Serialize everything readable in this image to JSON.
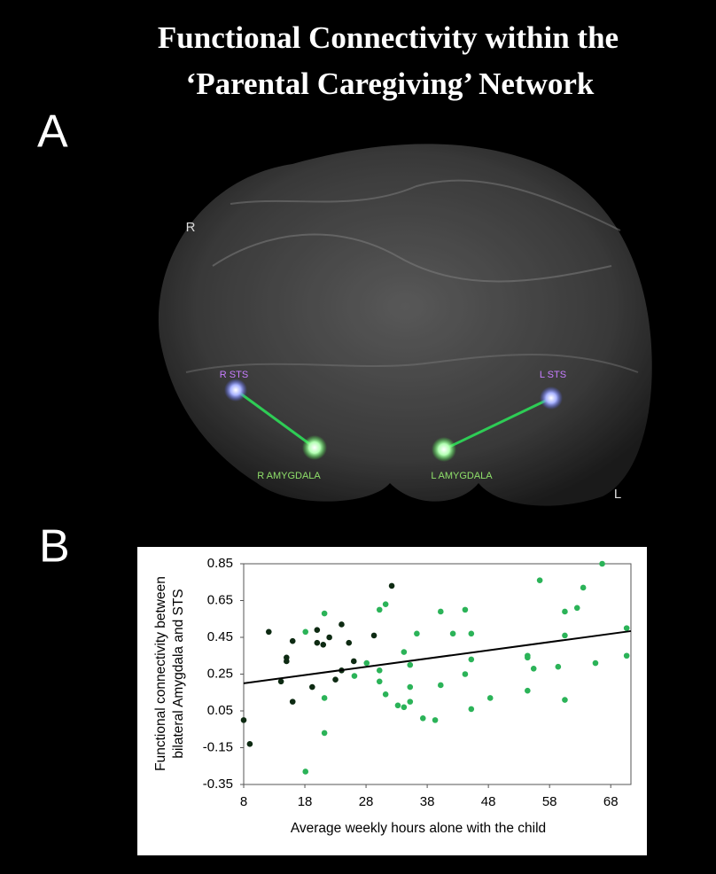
{
  "figure": {
    "title_lines": [
      "Functional Connectivity within the",
      "‘Parental Caregiving’ Network"
    ],
    "panel_a": "A",
    "panel_b": "B",
    "brain_labels": {
      "right": "R",
      "left": "L",
      "r_sts": "R STS",
      "l_sts": "L STS",
      "r_amygdala": "R AMYGDALA",
      "l_amygdala": "L AMYGDALA"
    }
  },
  "chart_data": {
    "type": "scatter",
    "x_label": "Average weekly hours alone with the child",
    "y_label_lines": [
      "Functional connectivity between",
      "bilateral Amygdala and STS"
    ],
    "xlim": [
      8,
      71.3
    ],
    "xticks": [
      8,
      18,
      28,
      38,
      48,
      58,
      68
    ],
    "ylim": [
      -0.35,
      0.85
    ],
    "yticks": [
      -0.35,
      -0.15,
      0.05,
      0.25,
      0.45,
      0.65,
      0.85
    ],
    "series": [
      {
        "color": "#0d2a12",
        "x": [
          8,
          9,
          12.1,
          14.1,
          15,
          15,
          16,
          16,
          19.2,
          20,
          20,
          21,
          22,
          23,
          24,
          24,
          25.2,
          26,
          29.3,
          32.2
        ],
        "values": [
          0.0,
          -0.13,
          0.48,
          0.21,
          0.34,
          0.32,
          0.43,
          0.1,
          0.18,
          0.49,
          0.42,
          0.41,
          0.45,
          0.22,
          0.52,
          0.27,
          0.42,
          0.32,
          0.46,
          0.73
        ]
      },
      {
        "color": "#2bb358",
        "x": [
          18.1,
          18.1,
          21.2,
          21.2,
          21.2,
          26.1,
          28.1,
          30.2,
          30.2,
          30.2,
          31.2,
          31.2,
          33.2,
          34.2,
          34.2,
          35.2,
          35.2,
          35.2,
          36.3,
          37.3,
          39.3,
          40.2,
          40.2,
          42.2,
          44.2,
          44.2,
          45.2,
          45.2,
          45.2,
          48.3,
          54.4,
          54.4,
          54.4,
          55.4,
          56.4,
          59.4,
          60.5,
          60.5,
          60.5,
          62.5,
          63.5,
          65.5,
          66.6,
          70.6,
          70.6
        ],
        "values": [
          -0.28,
          0.48,
          0.58,
          0.12,
          -0.07,
          0.24,
          0.31,
          0.6,
          0.27,
          0.21,
          0.63,
          0.14,
          0.08,
          0.37,
          0.07,
          0.3,
          0.18,
          0.1,
          0.47,
          0.01,
          0.0,
          0.59,
          0.19,
          0.47,
          0.6,
          0.25,
          0.47,
          0.33,
          0.06,
          0.12,
          0.35,
          0.34,
          0.16,
          0.28,
          0.76,
          0.29,
          0.59,
          0.46,
          0.11,
          0.61,
          0.72,
          0.31,
          0.85,
          0.5,
          0.35
        ]
      }
    ],
    "trendline": {
      "color": "#000000",
      "x": [
        8,
        71.3
      ],
      "values": [
        0.2,
        0.484
      ]
    }
  }
}
